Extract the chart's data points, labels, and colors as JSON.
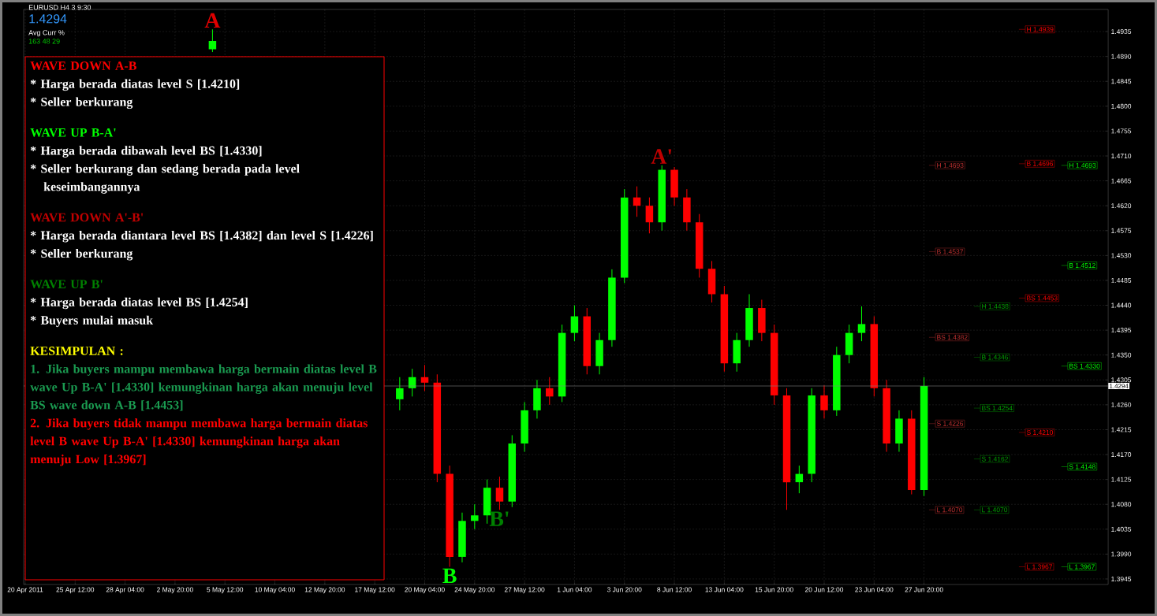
{
  "chart_data": {
    "type": "candlestick",
    "categories": [
      "20 Apr 2011",
      null,
      null,
      null,
      "25 Apr 12:00",
      null,
      null,
      null,
      "28 Apr 04:00",
      null,
      null,
      null,
      "2 May 20:00",
      null,
      null,
      null,
      "5 May 12:00",
      null,
      null,
      null,
      "10 May 04:00",
      null,
      null,
      null,
      "12 May 20:00",
      null,
      null,
      null,
      "17 May 12:00",
      null,
      null,
      null,
      "20 May 04:00",
      null,
      null,
      null,
      "24 May 20:00",
      null,
      null,
      null,
      "27 May 12:00",
      null,
      null,
      null,
      "1 Jun 04:00",
      null,
      null,
      null,
      "3 Jun 20:00",
      null,
      null,
      null,
      "8 Jun 12:00",
      null,
      null,
      null,
      "13 Jun 04:00",
      null,
      null,
      null,
      "15 Jun 20:00",
      null,
      null,
      null,
      "20 Jun 12:00",
      null,
      null,
      null,
      "23 Jun 04:00",
      null,
      null,
      null,
      "27 Jun 20:00",
      null,
      null,
      null,
      null,
      null,
      null,
      null,
      null,
      null,
      null,
      null,
      null,
      null,
      null
    ],
    "ohlc": [
      null,
      null,
      null,
      null,
      null,
      null,
      null,
      null,
      null,
      null,
      null,
      null,
      null,
      null,
      null,
      [
        1.4903,
        1.4939,
        1.4898,
        1.4918
      ],
      null,
      null,
      null,
      null,
      null,
      null,
      null,
      null,
      null,
      null,
      null,
      null,
      null,
      null,
      [
        1.427,
        1.431,
        1.425,
        1.429
      ],
      [
        1.429,
        1.4325,
        1.4275,
        1.431
      ],
      [
        1.431,
        1.4332,
        1.4285,
        1.43
      ],
      [
        1.43,
        1.4315,
        1.412,
        1.4135
      ],
      [
        1.4135,
        1.415,
        1.3967,
        1.3985
      ],
      [
        1.3985,
        1.4065,
        1.3975,
        1.405
      ],
      [
        1.405,
        1.408,
        1.4035,
        1.406
      ],
      [
        1.406,
        1.4125,
        1.4045,
        1.411
      ],
      [
        1.411,
        1.413,
        1.407,
        1.4085
      ],
      [
        1.4085,
        1.4205,
        1.4075,
        1.419
      ],
      [
        1.419,
        1.4265,
        1.4175,
        1.425
      ],
      [
        1.425,
        1.4305,
        1.4235,
        1.429
      ],
      [
        1.429,
        1.431,
        1.426,
        1.4275
      ],
      [
        1.4275,
        1.4405,
        1.4265,
        1.439
      ],
      [
        1.439,
        1.444,
        1.4375,
        1.442
      ],
      [
        1.442,
        1.4435,
        1.4315,
        1.433
      ],
      [
        1.433,
        1.439,
        1.4315,
        1.4377
      ],
      [
        1.4377,
        1.4505,
        1.4365,
        1.449
      ],
      [
        1.449,
        1.465,
        1.448,
        1.4635
      ],
      [
        1.4635,
        1.4655,
        1.46,
        1.462
      ],
      [
        1.462,
        1.4635,
        1.457,
        1.459
      ],
      [
        1.459,
        1.4693,
        1.4575,
        1.4685
      ],
      [
        1.4685,
        1.469,
        1.462,
        1.4635
      ],
      [
        1.4635,
        1.465,
        1.4575,
        1.459
      ],
      [
        1.459,
        1.4605,
        1.449,
        1.4506
      ],
      [
        1.4506,
        1.452,
        1.4445,
        1.446
      ],
      [
        1.446,
        1.4475,
        1.432,
        1.4335
      ],
      [
        1.4335,
        1.439,
        1.432,
        1.4377
      ],
      [
        1.4377,
        1.446,
        1.4365,
        1.4435
      ],
      [
        1.4435,
        1.445,
        1.4375,
        1.439
      ],
      [
        1.439,
        1.4405,
        1.426,
        1.4277
      ],
      [
        1.4277,
        1.429,
        1.407,
        1.412
      ],
      [
        1.412,
        1.415,
        1.41,
        1.4135
      ],
      [
        1.4135,
        1.429,
        1.412,
        1.4277
      ],
      [
        1.4277,
        1.4295,
        1.4235,
        1.425
      ],
      [
        1.425,
        1.4365,
        1.424,
        1.435
      ],
      [
        1.435,
        1.4405,
        1.4335,
        1.439
      ],
      [
        1.439,
        1.4438,
        1.4375,
        1.4406
      ],
      [
        1.4406,
        1.442,
        1.4275,
        1.429
      ],
      [
        1.429,
        1.4305,
        1.4175,
        1.419
      ],
      [
        1.419,
        1.425,
        1.4175,
        1.4235
      ],
      [
        1.4235,
        1.425,
        1.4098,
        1.4106
      ],
      [
        1.4106,
        1.431,
        1.4095,
        1.4294
      ],
      null,
      null,
      null,
      null,
      null,
      null,
      null,
      null,
      null,
      null,
      null,
      null,
      null,
      null
    ],
    "colors": [
      null,
      null,
      null,
      null,
      null,
      null,
      null,
      null,
      null,
      null,
      null,
      null,
      null,
      null,
      null,
      "#00ff00",
      null,
      null,
      null,
      null,
      null,
      null,
      null,
      null,
      null,
      null,
      null,
      null,
      null,
      null,
      "#00ff00",
      "#00ff00",
      "#ff0000",
      "#ff0000",
      "#ff0000",
      "#00ff00",
      "#00ff00",
      "#00ff00",
      "#ff0000",
      "#00ff00",
      "#00ff00",
      "#00ff00",
      "#ff0000",
      "#00ff00",
      "#00ff00",
      "#ff0000",
      "#00ff00",
      "#00ff00",
      "#00ff00",
      "#ff0000",
      "#ff0000",
      "#00ff00",
      "#ff0000",
      "#ff0000",
      "#ff0000",
      "#ff0000",
      "#ff0000",
      "#00ff00",
      "#00ff00",
      "#ff0000",
      "#ff0000",
      "#ff0000",
      "#00ff00",
      "#00ff00",
      "#ff0000",
      "#00ff00",
      "#00ff00",
      "#00ff00",
      "#ff0000",
      "#ff0000",
      "#00ff00",
      "#ff0000",
      "#00ff00",
      null,
      null,
      null,
      null,
      null,
      null,
      null,
      null,
      null,
      null,
      null,
      null,
      null,
      null
    ],
    "ylim": [
      1.3935,
      1.4975
    ],
    "yticks": [
      1.3945,
      {
        "value": 1.399,
        "label": "1.3990"
      },
      1.4035,
      {
        "value": 1.408,
        "label": "1.4080"
      },
      1.4125,
      {
        "value": 1.417,
        "label": "1.4170"
      },
      1.4215,
      {
        "value": 1.426,
        "label": "1.4260"
      },
      1.4305,
      {
        "value": 1.435,
        "label": "1.4350"
      },
      1.4395,
      {
        "value": 1.444,
        "label": "1.4440"
      },
      1.4485,
      {
        "value": 1.453,
        "label": "1.4530"
      },
      1.4575,
      {
        "value": 1.462,
        "label": "1.4620"
      },
      1.4665,
      {
        "value": 1.471,
        "label": "1.4710"
      },
      1.4755,
      {
        "value": 1.48,
        "label": "1.4800"
      },
      1.4845,
      {
        "value": 1.489,
        "label": "1.4890"
      },
      1.4935
    ],
    "grid": true,
    "ref_lines": [
      {
        "axis": "y",
        "value": 1.4693,
        "label": "H 1.4693",
        "color": "#c03030"
      },
      {
        "axis": "y",
        "value": 1.4537,
        "label": "B 1.4537",
        "color": "#c03030"
      },
      {
        "axis": "y",
        "value": 1.4382,
        "label": "BS 1.4382",
        "color": "#c03030"
      },
      {
        "axis": "y",
        "value": 1.4226,
        "label": "S 1.4226",
        "color": "#c03030"
      },
      {
        "axis": "y",
        "value": 1.407,
        "label": "L 1.4070",
        "color": "#c03030"
      },
      {
        "axis": "y",
        "value": 1.4438,
        "label": "H 1.4438",
        "color": "#00a000"
      },
      {
        "axis": "y",
        "value": 1.4346,
        "label": "B 1.4346",
        "color": "#00a000"
      },
      {
        "axis": "y",
        "value": 1.4254,
        "label": "BS 1.4254",
        "color": "#00a000"
      },
      {
        "axis": "y",
        "value": 1.4162,
        "label": "S 1.4162",
        "color": "#00a000"
      },
      {
        "axis": "y",
        "value": 1.407,
        "label": "L 1.4070",
        "color": "#00a000"
      },
      {
        "axis": "y",
        "value": 1.4939,
        "label": "H 1.4939",
        "color": "#ff0000"
      },
      {
        "axis": "y",
        "value": 1.4696,
        "label": "B 1.4696",
        "color": "#ff0000"
      },
      {
        "axis": "y",
        "value": 1.4453,
        "label": "BS 1.4453",
        "color": "#ff0000"
      },
      {
        "axis": "y",
        "value": 1.421,
        "label": "S 1.4210",
        "color": "#ff0000"
      },
      {
        "axis": "y",
        "value": 1.3967,
        "label": "L 1.3967",
        "color": "#ff0000"
      },
      {
        "axis": "y",
        "value": 1.4693,
        "label": "H 1.4693",
        "color": "#00ff00"
      },
      {
        "axis": "y",
        "value": 1.4512,
        "label": "B 1.4512",
        "color": "#00ff00"
      },
      {
        "axis": "y",
        "value": 1.433,
        "label": "BS 1.4330",
        "color": "#00ff00"
      },
      {
        "axis": "y",
        "value": 1.4148,
        "label": "S 1.4148",
        "color": "#00ff00"
      },
      {
        "axis": "y",
        "value": 1.3967,
        "label": "L 1.3967",
        "color": "#00ff00"
      },
      {
        "axis": "y",
        "value": 1.4294,
        "label": "1.4294",
        "color": "#808080"
      }
    ],
    "annotations": [
      "EURUSD H4 3 9:30",
      "1.4294",
      "Avg  Curr  %",
      "163  48  29",
      "WAVE DOWN A-B",
      "* Harga berada diatas level S [1.4210]",
      "* Seller berkurang",
      "WAVE UP B-A'",
      "* Harga berada dibawah level BS [1.4330]",
      "* Seller berkurang dan sedang berada pada  level keseimbangannya",
      "WAVE DOWN A'-B'",
      "* Harga berada diantara level BS [1.4382] dan level S [1.4226]",
      "* Seller berkurang",
      "WAVE UP B'",
      "* Harga berada diatas level BS [1.4254]",
      "* Buyers mulai masuk",
      "KESIMPULAN :",
      "1. Jika buyers mampu membawa harga bermain diatas level B wave Up B-A' [1.4330] kemungkinan harga akan menuju level BS wave down A-B [1.4453]",
      "2. Jika buyers tidak mampu membawa harga bermain diatas level B wave Up B-A' [1.4330] kemungkinan harga akan menuju Low [1.3967]",
      {
        "text": "A",
        "y": 1.4939
      },
      {
        "text": "B",
        "y": 1.3967
      },
      {
        "text": "A'",
        "y": 1.4693
      },
      {
        "text": "B'",
        "y": 1.407
      }
    ]
  }
}
